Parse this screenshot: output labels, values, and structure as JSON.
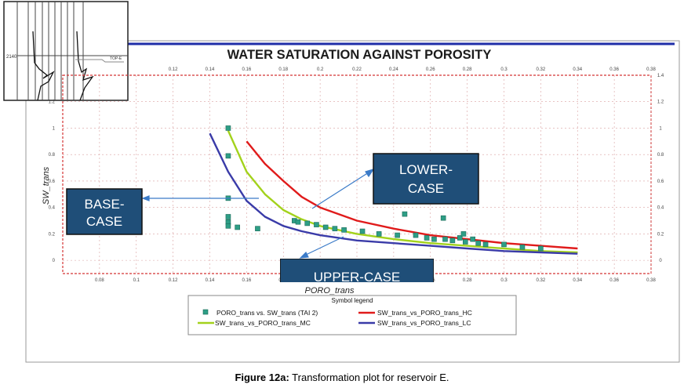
{
  "caption": {
    "label": "Figure 12a:",
    "text": " Transformation plot for reservoir E."
  },
  "well_log": {
    "depth_label": "2140",
    "track_label": "TOP-E"
  },
  "chart_data": {
    "type": "scatter",
    "title": "WATER SATURATION AGAINST POROSITY",
    "xlabel": "PORO_trans",
    "ylabel": "SW_trans",
    "xlim": [
      0.06,
      0.38
    ],
    "ylim": [
      -0.1,
      1.4
    ],
    "x_ticks": [
      "0.08",
      "0.1",
      "0.12",
      "0.14",
      "0.16",
      "0.18",
      "0.2",
      "0.22",
      "0.24",
      "0.26",
      "0.28",
      "0.3",
      "0.32",
      "0.34",
      "0.36",
      "0.38"
    ],
    "x_tick_values": [
      0.08,
      0.1,
      0.12,
      0.14,
      0.16,
      0.18,
      0.2,
      0.22,
      0.24,
      0.26,
      0.28,
      0.3,
      0.32,
      0.34,
      0.36,
      0.38
    ],
    "top_ticks": [
      "0.12",
      "0.14",
      "0.16",
      "0.18",
      "0.2",
      "0.22",
      "0.24",
      "0.26",
      "0.28",
      "0.3",
      "0.32",
      "0.34",
      "0.36",
      "0.38"
    ],
    "top_tick_values": [
      0.12,
      0.14,
      0.16,
      0.18,
      0.2,
      0.22,
      0.24,
      0.26,
      0.28,
      0.3,
      0.32,
      0.34,
      0.36,
      0.38
    ],
    "y_ticks": [
      "0",
      "0.2",
      "0.4",
      "0.6",
      "0.8",
      "1",
      "1.2"
    ],
    "y_tick_values": [
      0,
      0.2,
      0.4,
      0.6,
      0.8,
      1,
      1.2
    ],
    "right_ticks": [
      "0",
      "0.2",
      "0.4",
      "0.6",
      "0.8",
      "1",
      "1.2",
      "1.4"
    ],
    "right_tick_values": [
      0,
      0.2,
      0.4,
      0.6,
      0.8,
      1,
      1.2,
      1.4
    ],
    "grid": true,
    "legend_title": "Symbol legend",
    "series": [
      {
        "name": "PORO_trans vs. SW_trans (TAI 2)",
        "kind": "points",
        "color": "#2e9e86",
        "points": [
          [
            0.15,
            1.0
          ],
          [
            0.15,
            0.79
          ],
          [
            0.15,
            0.47
          ],
          [
            0.15,
            0.33
          ],
          [
            0.15,
            0.29
          ],
          [
            0.15,
            0.26
          ],
          [
            0.155,
            0.25
          ],
          [
            0.166,
            0.24
          ],
          [
            0.186,
            0.3
          ],
          [
            0.188,
            0.29
          ],
          [
            0.193,
            0.28
          ],
          [
            0.198,
            0.27
          ],
          [
            0.203,
            0.25
          ],
          [
            0.208,
            0.24
          ],
          [
            0.213,
            0.23
          ],
          [
            0.223,
            0.22
          ],
          [
            0.232,
            0.2
          ],
          [
            0.242,
            0.19
          ],
          [
            0.246,
            0.35
          ],
          [
            0.252,
            0.19
          ],
          [
            0.258,
            0.17
          ],
          [
            0.262,
            0.16
          ],
          [
            0.267,
            0.32
          ],
          [
            0.268,
            0.16
          ],
          [
            0.272,
            0.15
          ],
          [
            0.276,
            0.17
          ],
          [
            0.278,
            0.2
          ],
          [
            0.279,
            0.14
          ],
          [
            0.283,
            0.16
          ],
          [
            0.286,
            0.13
          ],
          [
            0.29,
            0.12
          ],
          [
            0.3,
            0.12
          ],
          [
            0.31,
            0.1
          ],
          [
            0.32,
            0.09
          ]
        ]
      },
      {
        "name": "SW_trans_vs_PORO_trans_HC",
        "kind": "line",
        "color": "#e01b1b",
        "points": [
          [
            0.16,
            0.9
          ],
          [
            0.17,
            0.73
          ],
          [
            0.18,
            0.6
          ],
          [
            0.19,
            0.48
          ],
          [
            0.2,
            0.4
          ],
          [
            0.22,
            0.3
          ],
          [
            0.24,
            0.24
          ],
          [
            0.26,
            0.19
          ],
          [
            0.28,
            0.16
          ],
          [
            0.3,
            0.13
          ],
          [
            0.32,
            0.11
          ],
          [
            0.34,
            0.09
          ]
        ]
      },
      {
        "name": "SW_trans_vs_PORO_trans_MC",
        "kind": "line",
        "color": "#a3d21c",
        "points": [
          [
            0.15,
            0.98
          ],
          [
            0.16,
            0.67
          ],
          [
            0.17,
            0.5
          ],
          [
            0.18,
            0.38
          ],
          [
            0.19,
            0.31
          ],
          [
            0.2,
            0.26
          ],
          [
            0.22,
            0.2
          ],
          [
            0.24,
            0.16
          ],
          [
            0.26,
            0.13
          ],
          [
            0.28,
            0.11
          ],
          [
            0.3,
            0.09
          ],
          [
            0.32,
            0.07
          ],
          [
            0.34,
            0.06
          ]
        ]
      },
      {
        "name": "SW_trans_vs_PORO_trans_LC",
        "kind": "line",
        "color": "#3a3ba8",
        "points": [
          [
            0.14,
            0.96
          ],
          [
            0.15,
            0.67
          ],
          [
            0.16,
            0.45
          ],
          [
            0.17,
            0.33
          ],
          [
            0.18,
            0.26
          ],
          [
            0.19,
            0.22
          ],
          [
            0.2,
            0.19
          ],
          [
            0.22,
            0.15
          ],
          [
            0.24,
            0.13
          ],
          [
            0.26,
            0.11
          ],
          [
            0.28,
            0.09
          ],
          [
            0.3,
            0.07
          ],
          [
            0.32,
            0.06
          ],
          [
            0.34,
            0.05
          ]
        ]
      }
    ],
    "annotations": [
      {
        "text": "BASE-\nCASE",
        "ax": [
          0.16,
          0.47
        ]
      },
      {
        "text": "LOWER-\nCASE",
        "ax": [
          0.203,
          0.42
        ]
      },
      {
        "text": "UPPER-CASE",
        "ax": [
          0.205,
          0.05
        ]
      }
    ]
  }
}
